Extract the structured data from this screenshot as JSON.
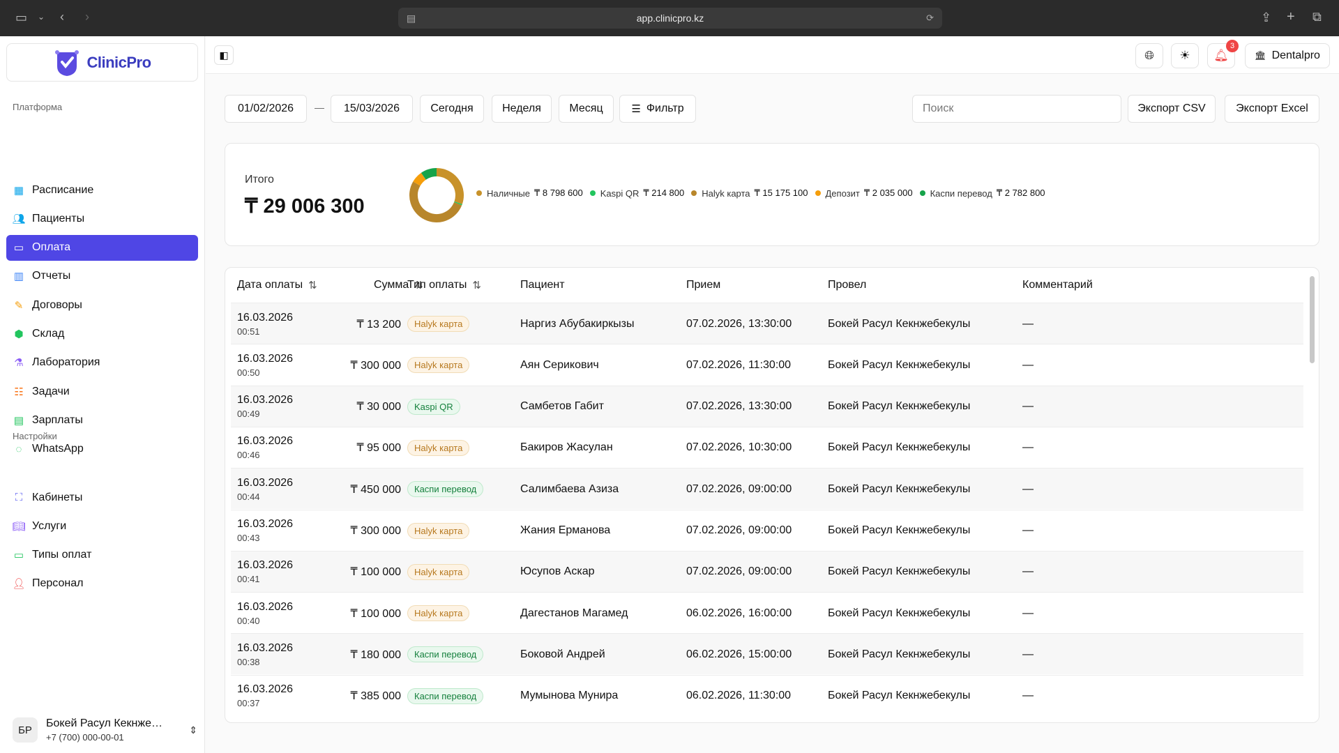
{
  "browser": {
    "url": "app.clinicpro.kz"
  },
  "app": {
    "name": "ClinicPro",
    "brand_color": "#4f46e5"
  },
  "sidebar": {
    "platform_label": "Платформа",
    "items": [
      {
        "label": "Расписание",
        "icon": "calendar-icon",
        "color": "#0ea5e9"
      },
      {
        "label": "Пациенты",
        "icon": "users-icon",
        "color": "#0ea5e9"
      },
      {
        "label": "Оплата",
        "icon": "credit-card-icon",
        "color": "#ffffff",
        "active": true
      },
      {
        "label": "Отчеты",
        "icon": "bar-chart-icon",
        "color": "#3b82f6"
      },
      {
        "label": "Договоры",
        "icon": "document-edit-icon",
        "color": "#f59e0b"
      },
      {
        "label": "Склад",
        "icon": "box-icon",
        "color": "#22c55e"
      },
      {
        "label": "Лаборатория",
        "icon": "flask-icon",
        "color": "#8b5cf6"
      },
      {
        "label": "Задачи",
        "icon": "tasks-icon",
        "color": "#f97316"
      },
      {
        "label": "Зарплаты",
        "icon": "money-icon",
        "color": "#22c55e"
      },
      {
        "label": "WhatsApp",
        "icon": "whatsapp-icon",
        "color": "#22c55e"
      }
    ],
    "settings_label": "Настройки",
    "settings_items": [
      {
        "label": "Кабинеты",
        "icon": "map-icon",
        "color": "#6366f1"
      },
      {
        "label": "Услуги",
        "icon": "book-icon",
        "color": "#8b5cf6"
      },
      {
        "label": "Типы оплат",
        "icon": "wallet-icon",
        "color": "#22c55e"
      },
      {
        "label": "Персонал",
        "icon": "staff-icon",
        "color": "#ef4444"
      }
    ],
    "user": {
      "initials": "БР",
      "name": "Бокей Расул Кекнже…",
      "phone": "+7 (700) 000-00-01"
    }
  },
  "topbar": {
    "notifications_count": "3",
    "org_name": "Dentalpro"
  },
  "filters": {
    "date_from": "01/02/2026",
    "separator": "—",
    "date_to": "15/03/2026",
    "today": "Сегодня",
    "week": "Неделя",
    "month": "Месяц",
    "filter": "Фильтр",
    "search_placeholder": "Поиск",
    "export_csv": "Экспорт CSV",
    "export_excel": "Экспорт Excel"
  },
  "summary": {
    "label": "Итого",
    "total": "₸ 29 006 300",
    "legend": [
      {
        "name": "Наличные",
        "value": "₸ 8 798 600",
        "amount": 8798600,
        "color": "#c8922a"
      },
      {
        "name": "Kaspi QR",
        "value": "₸ 214 800",
        "amount": 214800,
        "color": "#22c55e"
      },
      {
        "name": "Halyk карта",
        "value": "₸ 15 175 100",
        "amount": 15175100,
        "color": "#b8862b"
      },
      {
        "name": "Депозит",
        "value": "₸ 2 035 000",
        "amount": 2035000,
        "color": "#f59e0b"
      },
      {
        "name": "Каспи перевод",
        "value": "₸ 2 782 800",
        "amount": 2782800,
        "color": "#16a34a"
      }
    ]
  },
  "table": {
    "headers": {
      "date": "Дата оплаты",
      "sum": "Сумма",
      "type": "Тип оплаты",
      "patient": "Пациент",
      "appointment": "Прием",
      "by": "Провел",
      "comment": "Комментарий"
    },
    "rows": [
      {
        "date": "16.03.2026",
        "time": "00:51",
        "sum": "₸ 13 200",
        "type": "Halyk карта",
        "kind": "halyk",
        "patient": "Наргиз Абубакиркызы",
        "appointment": "07.02.2026, 13:30:00",
        "by": "Бокей Расул Кекнжебекулы",
        "comment": "—"
      },
      {
        "date": "16.03.2026",
        "time": "00:50",
        "sum": "₸ 300 000",
        "type": "Halyk карта",
        "kind": "halyk",
        "patient": "Аян Серикович",
        "appointment": "07.02.2026, 11:30:00",
        "by": "Бокей Расул Кекнжебекулы",
        "comment": "—"
      },
      {
        "date": "16.03.2026",
        "time": "00:49",
        "sum": "₸ 30 000",
        "type": "Kaspi QR",
        "kind": "green",
        "patient": "Самбетов Габит",
        "appointment": "07.02.2026, 13:30:00",
        "by": "Бокей Расул Кекнжебекулы",
        "comment": "—"
      },
      {
        "date": "16.03.2026",
        "time": "00:46",
        "sum": "₸ 95 000",
        "type": "Halyk карта",
        "kind": "halyk",
        "patient": "Бакиров Жасулан",
        "appointment": "07.02.2026, 10:30:00",
        "by": "Бокей Расул Кекнжебекулы",
        "comment": "—"
      },
      {
        "date": "16.03.2026",
        "time": "00:44",
        "sum": "₸ 450 000",
        "type": "Каспи перевод",
        "kind": "green",
        "patient": "Салимбаева Азиза",
        "appointment": "07.02.2026, 09:00:00",
        "by": "Бокей Расул Кекнжебекулы",
        "comment": "—"
      },
      {
        "date": "16.03.2026",
        "time": "00:43",
        "sum": "₸ 300 000",
        "type": "Halyk карта",
        "kind": "halyk",
        "patient": "Жания Ерманова",
        "appointment": "07.02.2026, 09:00:00",
        "by": "Бокей Расул Кекнжебекулы",
        "comment": "—"
      },
      {
        "date": "16.03.2026",
        "time": "00:41",
        "sum": "₸ 100 000",
        "type": "Halyk карта",
        "kind": "halyk",
        "patient": "Юсупов Аскар",
        "appointment": "07.02.2026, 09:00:00",
        "by": "Бокей Расул Кекнжебекулы",
        "comment": "—"
      },
      {
        "date": "16.03.2026",
        "time": "00:40",
        "sum": "₸ 100 000",
        "type": "Halyk карта",
        "kind": "halyk",
        "patient": "Дагестанов Магамед",
        "appointment": "06.02.2026, 16:00:00",
        "by": "Бокей Расул Кекнжебекулы",
        "comment": "—"
      },
      {
        "date": "16.03.2026",
        "time": "00:38",
        "sum": "₸ 180 000",
        "type": "Каспи перевод",
        "kind": "green",
        "patient": "Боковой Андрей",
        "appointment": "06.02.2026, 15:00:00",
        "by": "Бокей Расул Кекнжебекулы",
        "comment": "—"
      },
      {
        "date": "16.03.2026",
        "time": "00:37",
        "sum": "₸ 385 000",
        "type": "Каспи перевод",
        "kind": "green",
        "patient": "Мумынова Мунира",
        "appointment": "06.02.2026, 11:30:00",
        "by": "Бокей Расул Кекнжебекулы",
        "comment": "—"
      }
    ]
  }
}
